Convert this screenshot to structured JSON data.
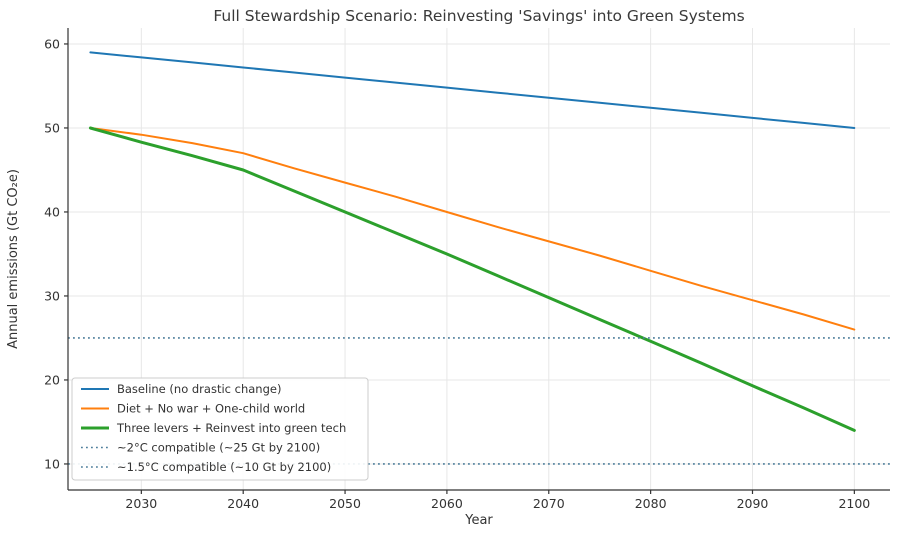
{
  "figure": {
    "background": "#ffffff"
  },
  "chart_data": {
    "type": "line",
    "title": "Full Stewardship Scenario: Reinvesting 'Savings' into Green Systems",
    "xlabel": "Year",
    "ylabel": "Annual emissions (Gt CO₂e)",
    "x": [
      2025,
      2030,
      2035,
      2040,
      2045,
      2050,
      2055,
      2060,
      2065,
      2070,
      2075,
      2080,
      2085,
      2090,
      2095,
      2100
    ],
    "series": [
      {
        "name": "Baseline (no drastic change)",
        "color": "#1f77b4",
        "style": "solid",
        "width": 2,
        "values": [
          59,
          58.4,
          57.8,
          57.2,
          56.6,
          56,
          55.4,
          54.8,
          54.2,
          53.6,
          53,
          52.4,
          51.8,
          51.2,
          50.6,
          50
        ]
      },
      {
        "name": "Diet + No war + One-child world",
        "color": "#ff7f0e",
        "style": "solid",
        "width": 2,
        "values": [
          50,
          49.2,
          48.2,
          47,
          45.2,
          43.5,
          41.8,
          40,
          38.2,
          36.5,
          34.8,
          33,
          31.2,
          29.5,
          27.8,
          26
        ]
      },
      {
        "name": "Three levers + Reinvest into green tech",
        "color": "#2ca02c",
        "style": "solid",
        "width": 3,
        "values": [
          50,
          48.3,
          46.7,
          45,
          42.5,
          40,
          37.5,
          35,
          32.4,
          29.8,
          27.2,
          24.6,
          22,
          19.3,
          16.7,
          14
        ]
      },
      {
        "name": "~2°C compatible (~25 Gt by 2100)",
        "color": "#4e7f9b",
        "style": "dotted",
        "width": 1.6,
        "constant": 25
      },
      {
        "name": "~1.5°C compatible (~10 Gt by 2100)",
        "color": "#4e7f9b",
        "style": "dotted",
        "width": 1.6,
        "constant": 10
      }
    ],
    "x_ticks": [
      2030,
      2040,
      2050,
      2060,
      2070,
      2080,
      2090,
      2100
    ],
    "y_ticks": [
      10,
      20,
      30,
      40,
      50,
      60
    ],
    "x_range": [
      2022.8,
      2103.5
    ],
    "y_range": [
      6.9,
      61.9
    ],
    "grid": true,
    "legend_position": "lower-left",
    "grid_color": "#e7e7e7",
    "axis_color": "#333333",
    "text_color": "#3a3a3a"
  }
}
